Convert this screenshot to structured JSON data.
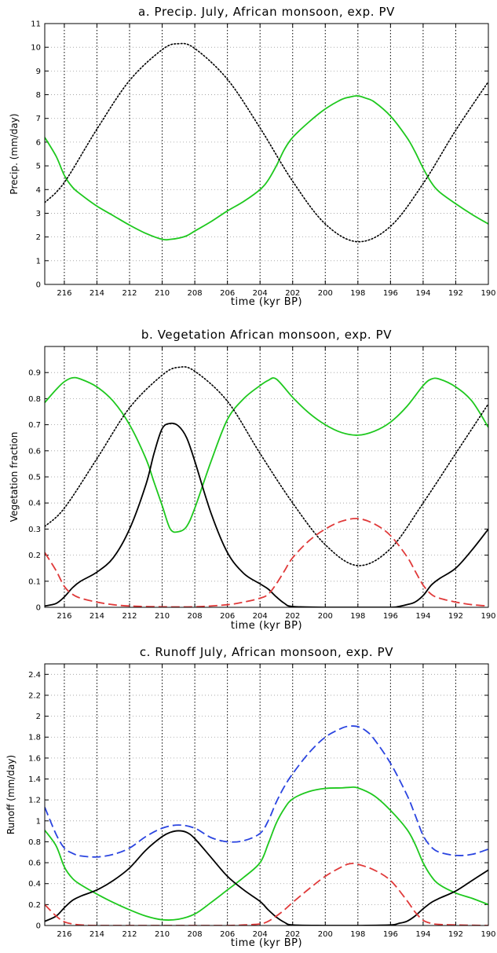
{
  "chart_data": [
    {
      "type": "line",
      "title": "a. Precip. July, African monsoon, exp. PV",
      "xlabel": "time (kyr BP)",
      "ylabel": "Precip. (mm/day)",
      "xlim": [
        217.2,
        190
      ],
      "ylim": [
        0,
        11
      ],
      "xticks": [
        216,
        214,
        212,
        210,
        208,
        206,
        204,
        202,
        200,
        198,
        196,
        194,
        192,
        190
      ],
      "yticks": [
        0,
        1,
        2,
        3,
        4,
        5,
        6,
        7,
        8,
        9,
        10,
        11
      ],
      "grid": true,
      "series": [
        {
          "color": "#1ec81e",
          "style": "solid",
          "x": [
            217.2,
            216.5,
            216.0,
            215.5,
            215.0,
            214.0,
            213.0,
            212.0,
            211.0,
            210.0,
            209.5,
            209.0,
            208.5,
            208.0,
            207.0,
            206.0,
            205.0,
            204.0,
            203.5,
            203.0,
            202.5,
            202.0,
            201.0,
            200.0,
            199.0,
            198.5,
            198.0,
            197.5,
            197.0,
            196.0,
            195.0,
            194.5,
            194.0,
            193.5,
            193.0,
            192.0,
            191.0,
            190.0
          ],
          "y": [
            6.2,
            5.4,
            4.6,
            4.1,
            3.8,
            3.3,
            2.9,
            2.5,
            2.15,
            1.9,
            1.9,
            1.95,
            2.05,
            2.25,
            2.65,
            3.1,
            3.5,
            4.0,
            4.4,
            5.0,
            5.7,
            6.2,
            6.85,
            7.4,
            7.8,
            7.9,
            7.95,
            7.85,
            7.7,
            7.1,
            6.2,
            5.6,
            4.9,
            4.3,
            3.9,
            3.4,
            2.95,
            2.55
          ]
        },
        {
          "color": "#000000",
          "style": "dotted",
          "x": [
            217.2,
            216.0,
            214.0,
            212.0,
            210.0,
            209.0,
            208.0,
            206.0,
            204.0,
            202.0,
            200.0,
            198.0,
            196.0,
            194.0,
            192.0,
            190.0
          ],
          "y": [
            3.45,
            4.3,
            6.55,
            8.6,
            9.9,
            10.15,
            9.95,
            8.65,
            6.6,
            4.35,
            2.55,
            1.8,
            2.45,
            4.25,
            6.5,
            8.55
          ]
        }
      ]
    },
    {
      "type": "line",
      "title": "b. Vegetation African monsoon, exp. PV",
      "xlabel": "time (kyr BP)",
      "ylabel": "Vegetation fraction",
      "xlim": [
        217.2,
        190
      ],
      "ylim": [
        0,
        1
      ],
      "xticks": [
        216,
        214,
        212,
        210,
        208,
        206,
        204,
        202,
        200,
        198,
        196,
        194,
        192,
        190
      ],
      "yticks": [
        0,
        0.1,
        0.2,
        0.3,
        0.4,
        0.5,
        0.6,
        0.7,
        0.8,
        0.9
      ],
      "grid": true,
      "series": [
        {
          "color": "#1ec81e",
          "style": "solid",
          "x": [
            217.2,
            216.5,
            216.0,
            215.5,
            215.0,
            214.0,
            213.0,
            212.0,
            211.0,
            210.5,
            210.0,
            209.5,
            209.0,
            208.5,
            208.0,
            207.0,
            206.0,
            205.0,
            204.0,
            203.5,
            203.0,
            202.0,
            201.0,
            200.0,
            199.0,
            198.0,
            197.0,
            196.0,
            195.0,
            194.0,
            193.5,
            193.0,
            192.0,
            191.0,
            190.0
          ],
          "y": [
            0.785,
            0.835,
            0.865,
            0.88,
            0.875,
            0.845,
            0.79,
            0.7,
            0.57,
            0.48,
            0.39,
            0.3,
            0.29,
            0.31,
            0.38,
            0.56,
            0.72,
            0.8,
            0.85,
            0.87,
            0.875,
            0.805,
            0.745,
            0.7,
            0.67,
            0.66,
            0.675,
            0.71,
            0.77,
            0.85,
            0.875,
            0.875,
            0.845,
            0.79,
            0.69
          ]
        },
        {
          "color": "#000000",
          "style": "solid",
          "x": [
            217.2,
            216.5,
            216.0,
            215.5,
            215.0,
            214.0,
            213.0,
            212.0,
            211.0,
            210.5,
            210.0,
            209.5,
            209.0,
            208.5,
            208.0,
            207.0,
            206.0,
            205.0,
            204.0,
            203.5,
            203.0,
            202.5,
            202.0,
            200.0,
            198.0,
            196.0,
            195.5,
            195.0,
            194.5,
            194.0,
            193.5,
            193.0,
            192.0,
            191.0,
            190.0
          ],
          "y": [
            0.005,
            0.015,
            0.04,
            0.075,
            0.1,
            0.135,
            0.19,
            0.3,
            0.47,
            0.59,
            0.685,
            0.705,
            0.695,
            0.65,
            0.56,
            0.36,
            0.21,
            0.13,
            0.09,
            0.07,
            0.04,
            0.015,
            0.003,
            0.0,
            0.0,
            0.0,
            0.003,
            0.01,
            0.02,
            0.045,
            0.085,
            0.11,
            0.15,
            0.22,
            0.3
          ]
        },
        {
          "color": "#000000",
          "style": "dotted",
          "x": [
            217.2,
            216.0,
            214.0,
            212.0,
            210.0,
            209.0,
            208.0,
            206.0,
            204.0,
            202.0,
            200.0,
            198.0,
            196.0,
            194.0,
            192.0,
            190.0
          ],
          "y": [
            0.31,
            0.38,
            0.57,
            0.765,
            0.89,
            0.92,
            0.905,
            0.79,
            0.59,
            0.4,
            0.24,
            0.16,
            0.225,
            0.4,
            0.59,
            0.78
          ]
        },
        {
          "color": "#e03a3a",
          "style": "dashed",
          "x": [
            217.2,
            216.5,
            216.0,
            215.5,
            215.0,
            214.0,
            213.0,
            212.0,
            210.0,
            208.0,
            206.0,
            205.0,
            204.0,
            203.5,
            203.0,
            202.5,
            202.0,
            201.0,
            200.0,
            199.0,
            198.0,
            197.0,
            196.0,
            195.0,
            194.5,
            194.0,
            193.5,
            193.0,
            192.0,
            191.0,
            190.0
          ],
          "y": [
            0.21,
            0.14,
            0.08,
            0.05,
            0.035,
            0.02,
            0.01,
            0.005,
            0.002,
            0.002,
            0.01,
            0.02,
            0.035,
            0.05,
            0.09,
            0.14,
            0.19,
            0.255,
            0.3,
            0.33,
            0.34,
            0.32,
            0.275,
            0.195,
            0.14,
            0.085,
            0.05,
            0.035,
            0.02,
            0.01,
            0.005
          ]
        }
      ]
    },
    {
      "type": "line",
      "title": "c. Runoff July, African monsoon, exp. PV",
      "xlabel": "time (kyr BP)",
      "ylabel": "Runoff (mm/day)",
      "xlim": [
        217.2,
        190
      ],
      "ylim": [
        0,
        2.5
      ],
      "xticks": [
        216,
        214,
        212,
        210,
        208,
        206,
        204,
        202,
        200,
        198,
        196,
        194,
        192,
        190
      ],
      "yticks": [
        0,
        0.2,
        0.4,
        0.6,
        0.8,
        1,
        1.2,
        1.4,
        1.6,
        1.8,
        2,
        2.2,
        2.4
      ],
      "grid": true,
      "series": [
        {
          "color": "#2a44e0",
          "style": "dashed",
          "x": [
            217.2,
            216.5,
            216.0,
            215.5,
            215.0,
            214.0,
            213.0,
            212.0,
            211.0,
            210.0,
            209.0,
            208.0,
            207.0,
            206.0,
            205.0,
            204.0,
            203.5,
            203.0,
            202.5,
            202.0,
            201.0,
            200.0,
            199.0,
            198.5,
            198.0,
            197.5,
            197.0,
            196.0,
            195.0,
            194.5,
            194.0,
            193.5,
            193.0,
            192.0,
            191.0,
            190.0
          ],
          "y": [
            1.13,
            0.87,
            0.74,
            0.69,
            0.665,
            0.655,
            0.68,
            0.74,
            0.85,
            0.93,
            0.96,
            0.93,
            0.84,
            0.8,
            0.81,
            0.88,
            1.0,
            1.18,
            1.33,
            1.45,
            1.65,
            1.8,
            1.885,
            1.905,
            1.9,
            1.86,
            1.78,
            1.55,
            1.25,
            1.06,
            0.86,
            0.75,
            0.7,
            0.67,
            0.68,
            0.73
          ]
        },
        {
          "color": "#1ec81e",
          "style": "solid",
          "x": [
            217.2,
            216.5,
            216.0,
            215.5,
            215.0,
            214.0,
            213.0,
            212.0,
            211.0,
            210.0,
            209.0,
            208.0,
            207.0,
            206.0,
            205.0,
            204.0,
            203.5,
            203.0,
            202.5,
            202.0,
            201.0,
            200.0,
            199.0,
            198.5,
            198.0,
            197.0,
            196.0,
            195.0,
            194.5,
            194.0,
            193.5,
            193.0,
            192.0,
            191.0,
            190.0
          ],
          "y": [
            0.91,
            0.76,
            0.56,
            0.45,
            0.39,
            0.3,
            0.22,
            0.15,
            0.09,
            0.055,
            0.06,
            0.11,
            0.22,
            0.34,
            0.46,
            0.6,
            0.78,
            0.98,
            1.12,
            1.21,
            1.28,
            1.31,
            1.315,
            1.32,
            1.315,
            1.24,
            1.1,
            0.92,
            0.78,
            0.6,
            0.47,
            0.39,
            0.31,
            0.26,
            0.2
          ]
        },
        {
          "color": "#000000",
          "style": "solid",
          "x": [
            217.2,
            216.5,
            216.0,
            215.5,
            215.0,
            214.0,
            213.0,
            212.0,
            211.0,
            210.0,
            209.5,
            209.0,
            208.5,
            208.0,
            207.0,
            206.0,
            205.0,
            204.0,
            203.5,
            203.0,
            202.5,
            202.0,
            200.0,
            198.0,
            196.0,
            195.5,
            195.0,
            194.5,
            194.0,
            193.5,
            193.0,
            192.0,
            191.0,
            190.0
          ],
          "y": [
            0.04,
            0.09,
            0.17,
            0.24,
            0.28,
            0.34,
            0.43,
            0.55,
            0.72,
            0.85,
            0.89,
            0.905,
            0.89,
            0.83,
            0.65,
            0.47,
            0.34,
            0.23,
            0.15,
            0.08,
            0.03,
            0.005,
            0.0,
            0.0,
            0.005,
            0.02,
            0.04,
            0.09,
            0.16,
            0.22,
            0.26,
            0.33,
            0.43,
            0.53
          ]
        },
        {
          "color": "#e03a3a",
          "style": "dashed",
          "x": [
            217.2,
            216.5,
            216.0,
            215.5,
            215.0,
            214.0,
            212.0,
            210.0,
            208.0,
            206.0,
            205.0,
            204.0,
            203.5,
            203.0,
            202.5,
            202.0,
            201.0,
            200.0,
            199.0,
            198.5,
            198.0,
            197.0,
            196.0,
            195.0,
            194.5,
            194.0,
            193.5,
            193.0,
            192.0,
            190.0
          ],
          "y": [
            0.2,
            0.09,
            0.035,
            0.015,
            0.005,
            0.0,
            0.0,
            0.0,
            0.0,
            0.0,
            0.005,
            0.015,
            0.04,
            0.09,
            0.15,
            0.22,
            0.35,
            0.47,
            0.56,
            0.59,
            0.585,
            0.53,
            0.43,
            0.24,
            0.13,
            0.05,
            0.02,
            0.01,
            0.005,
            0.0
          ]
        }
      ]
    }
  ]
}
